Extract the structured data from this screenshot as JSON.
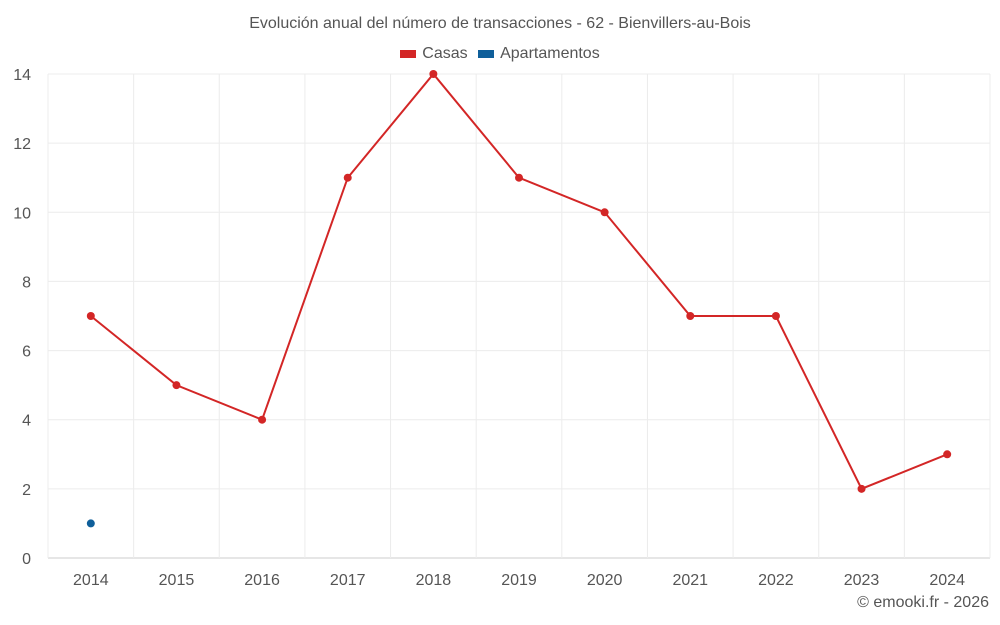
{
  "chart_data": {
    "type": "line",
    "title": "Evolución anual del número de transacciones - 62 - Bienvillers-au-Bois",
    "x": [
      "2014",
      "2015",
      "2016",
      "2017",
      "2018",
      "2019",
      "2020",
      "2021",
      "2022",
      "2023",
      "2024"
    ],
    "series": [
      {
        "name": "Casas",
        "color": "#d32626",
        "values": [
          7,
          5,
          4,
          11,
          14,
          11,
          10,
          7,
          7,
          2,
          3
        ]
      },
      {
        "name": "Apartamentos",
        "color": "#0f5f9a",
        "values": [
          1,
          null,
          null,
          null,
          null,
          null,
          null,
          null,
          null,
          null,
          null
        ]
      }
    ],
    "ylim": [
      0,
      14
    ],
    "yticks": [
      "0",
      "2",
      "4",
      "6",
      "8",
      "10",
      "12",
      "14"
    ],
    "grid": true,
    "legend_position": "top-center"
  },
  "credit": "© emooki.fr - 2026"
}
